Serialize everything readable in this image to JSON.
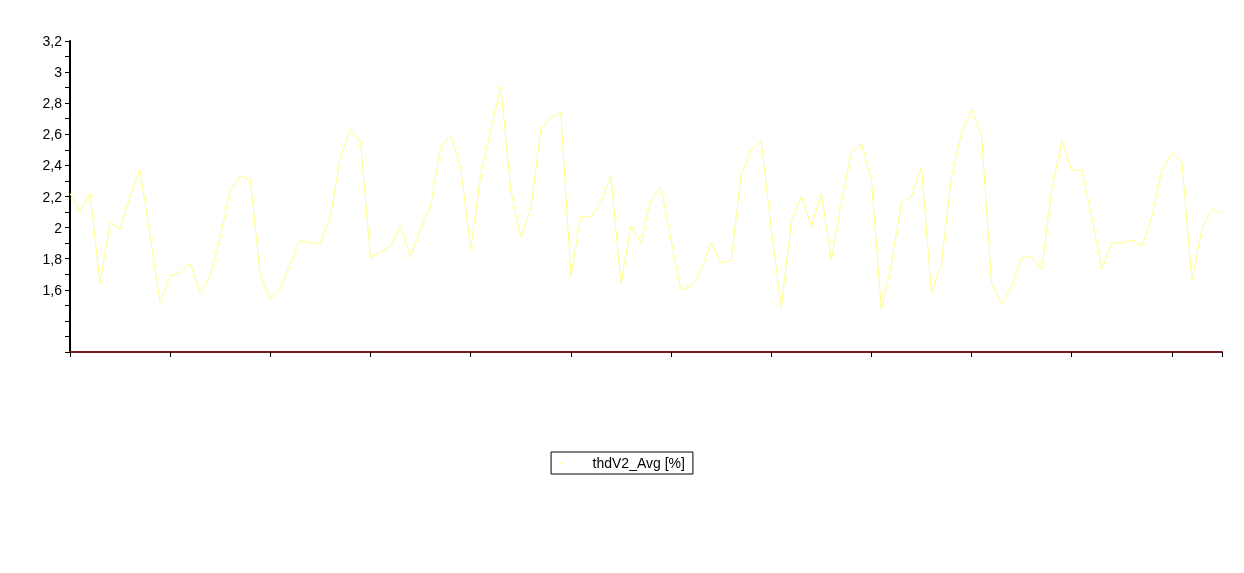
{
  "chart_data": {
    "type": "line",
    "categories": [
      null,
      null,
      null,
      null,
      null,
      null,
      null,
      null,
      null,
      null,
      null,
      null,
      null,
      null,
      null,
      null,
      null,
      null,
      null,
      null,
      null,
      null,
      null,
      null,
      null,
      null,
      null,
      null,
      null,
      null,
      null,
      null,
      null,
      null,
      null,
      null,
      null,
      null,
      null,
      null,
      null,
      null,
      null,
      null,
      null,
      null,
      null,
      null,
      null,
      null,
      null,
      null,
      null,
      null,
      null,
      null,
      null,
      null,
      null,
      null,
      null,
      null,
      null,
      null,
      null,
      null,
      null,
      null,
      null,
      null,
      null,
      null,
      null,
      null,
      null,
      null,
      null,
      null,
      null,
      null,
      null,
      null,
      null,
      null,
      null,
      null,
      null,
      null,
      null,
      null,
      null,
      null,
      null,
      null,
      null,
      null,
      null,
      null,
      null,
      null,
      null,
      null,
      null,
      null,
      null,
      null,
      null,
      null,
      null,
      null,
      null,
      null,
      null,
      null,
      null,
      null
    ],
    "series": [
      {
        "name": "thdV2_Avg [%]",
        "color": "#ffff80",
        "values": [
          2.22,
          2.1,
          2.22,
          1.64,
          2.03,
          1.99,
          2.2,
          2.37,
          1.94,
          1.52,
          1.69,
          1.71,
          1.77,
          1.58,
          1.69,
          1.94,
          2.24,
          2.33,
          2.31,
          1.69,
          1.54,
          1.61,
          1.77,
          1.92,
          1.9,
          1.9,
          2.07,
          2.46,
          2.63,
          2.55,
          1.81,
          1.84,
          1.88,
          2.01,
          1.81,
          1.99,
          2.14,
          2.52,
          2.59,
          2.39,
          1.86,
          2.34,
          2.63,
          2.91,
          2.24,
          1.94,
          2.12,
          2.63,
          2.71,
          2.74,
          1.69,
          2.07,
          2.07,
          2.16,
          2.33,
          1.64,
          2.01,
          1.9,
          2.18,
          2.26,
          1.92,
          1.6,
          1.62,
          1.73,
          1.9,
          1.77,
          1.79,
          2.34,
          2.5,
          2.56,
          1.99,
          1.49,
          2.03,
          2.2,
          2.01,
          2.22,
          1.79,
          2.16,
          2.48,
          2.54,
          2.31,
          1.47,
          1.77,
          2.16,
          2.2,
          2.39,
          1.58,
          1.77,
          2.33,
          2.61,
          2.76,
          2.59,
          1.64,
          1.51,
          1.62,
          1.81,
          1.81,
          1.73,
          2.24,
          2.56,
          2.37,
          2.37,
          2.07,
          1.73,
          1.9,
          1.9,
          1.92,
          1.88,
          2.07,
          2.37,
          2.48,
          2.42,
          1.66,
          1.99,
          2.12,
          2.09
        ]
      }
    ],
    "ylim": [
      1.2,
      3.2
    ],
    "yticks": [
      {
        "value": 1.2,
        "label": null
      },
      {
        "value": 1.3,
        "label": null
      },
      {
        "value": 1.4,
        "label": null
      },
      {
        "value": 1.5,
        "label": null
      },
      {
        "value": 1.6,
        "label": "1,6"
      },
      {
        "value": 1.7,
        "label": null
      },
      {
        "value": 1.8,
        "label": "1,8"
      },
      {
        "value": 1.9,
        "label": null
      },
      2,
      {
        "value": 2.1,
        "label": null
      },
      {
        "value": 2.2,
        "label": "2,2"
      },
      {
        "value": 2.3,
        "label": null
      },
      {
        "value": 2.4,
        "label": "2,4"
      },
      {
        "value": 2.5,
        "label": null
      },
      {
        "value": 2.6,
        "label": "2,6"
      },
      {
        "value": 2.7,
        "label": null
      },
      {
        "value": 2.8,
        "label": "2,8"
      },
      {
        "value": 2.9,
        "label": null
      },
      3,
      {
        "value": 3.1,
        "label": null
      },
      {
        "value": 3.2,
        "label": "3,2"
      }
    ],
    "grid": false,
    "legend": "bottom",
    "marker": "none",
    "line_style": "solid",
    "tick_labels": "y"
  }
}
